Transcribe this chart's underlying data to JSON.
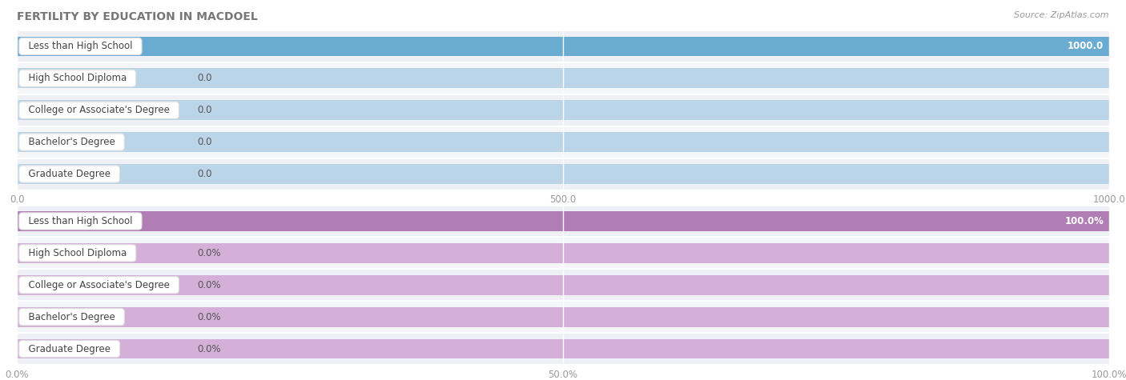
{
  "title": "FERTILITY BY EDUCATION IN MACDOEL",
  "source": "Source: ZipAtlas.com",
  "categories": [
    "Less than High School",
    "High School Diploma",
    "College or Associate's Degree",
    "Bachelor's Degree",
    "Graduate Degree"
  ],
  "values_abs": [
    1000.0,
    0.0,
    0.0,
    0.0,
    0.0
  ],
  "values_pct": [
    100.0,
    0.0,
    0.0,
    0.0,
    0.0
  ],
  "xlim_abs": [
    0,
    1000.0
  ],
  "xlim_pct": [
    0,
    100.0
  ],
  "xticks_abs": [
    0.0,
    500.0,
    1000.0
  ],
  "xticks_pct": [
    0.0,
    50.0,
    100.0
  ],
  "bar_color_abs": "#6aabd2",
  "bar_color_abs_light": "#bad4e8",
  "bar_color_pct": "#b07db5",
  "bar_color_pct_light": "#d4b0d8",
  "row_sep_color": "#ffffff",
  "row_bg_even": "#eef0f5",
  "row_bg_odd": "#f5f6fa",
  "label_box_bg": "#ffffff",
  "label_box_edge": "#cccccc",
  "title_color": "#777777",
  "tick_color": "#999999",
  "value_label_color_dark": "#555555",
  "value_label_color_light": "#ffffff"
}
